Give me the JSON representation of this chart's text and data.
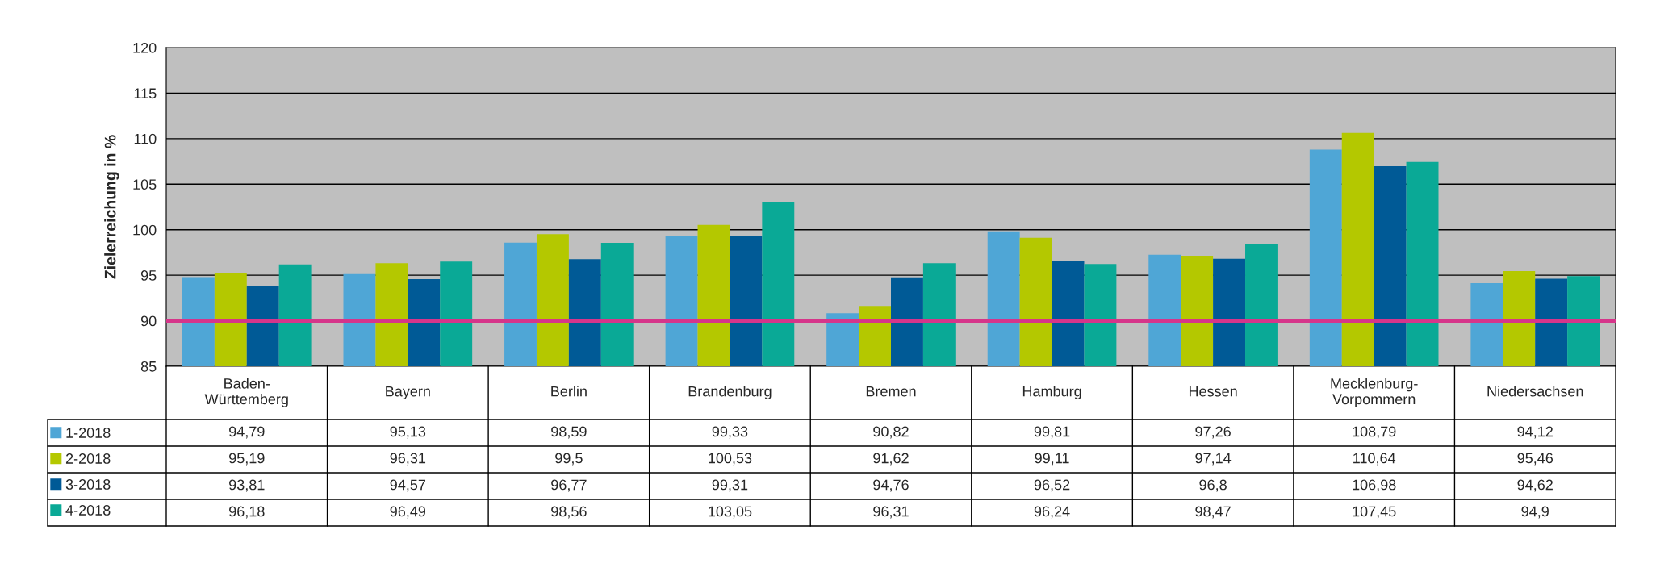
{
  "chart_data": {
    "type": "bar",
    "ylabel": "Zielerreichung in %",
    "categories": [
      "Baden-\nWürttemberg",
      "Bayern",
      "Berlin",
      "Brandenburg",
      "Bremen",
      "Hamburg",
      "Hessen",
      "Mecklenburg-\nVorpommern",
      "Niedersachsen"
    ],
    "series": [
      {
        "name": "1-2018",
        "color": "#4fa6d6",
        "values": [
          94.79,
          95.13,
          98.59,
          99.33,
          90.82,
          99.81,
          97.26,
          108.79,
          94.12
        ],
        "value_labels": [
          "94,79",
          "95,13",
          "98,59",
          "99,33",
          "90,82",
          "99,81",
          "97,26",
          "108,79",
          "94,12"
        ]
      },
      {
        "name": "2-2018",
        "color": "#b4c800",
        "values": [
          95.19,
          96.31,
          99.5,
          100.53,
          91.62,
          99.11,
          97.14,
          110.64,
          95.46
        ],
        "value_labels": [
          "95,19",
          "96,31",
          "99,5",
          "100,53",
          "91,62",
          "99,11",
          "97,14",
          "110,64",
          "95,46"
        ]
      },
      {
        "name": "3-2018",
        "color": "#005a96",
        "values": [
          93.81,
          94.57,
          96.77,
          99.31,
          94.76,
          96.52,
          96.8,
          106.98,
          94.62
        ],
        "value_labels": [
          "93,81",
          "94,57",
          "96,77",
          "99,31",
          "94,76",
          "96,52",
          "96,8",
          "106,98",
          "94,62"
        ]
      },
      {
        "name": "4-2018",
        "color": "#0aa996",
        "values": [
          96.18,
          96.49,
          98.56,
          103.05,
          96.31,
          96.24,
          98.47,
          107.45,
          94.9
        ],
        "value_labels": [
          "96,18",
          "96,49",
          "98,56",
          "103,05",
          "96,31",
          "96,24",
          "98,47",
          "107,45",
          "94,9"
        ]
      }
    ],
    "legend": "bottom left",
    "ylim": [
      85,
      120
    ],
    "yticks": [
      85,
      90,
      95,
      100,
      105,
      110,
      115,
      120
    ],
    "grid": "y",
    "ref_lines": [
      {
        "axis": "y",
        "value": 90,
        "color": "#d6358a"
      }
    ]
  }
}
